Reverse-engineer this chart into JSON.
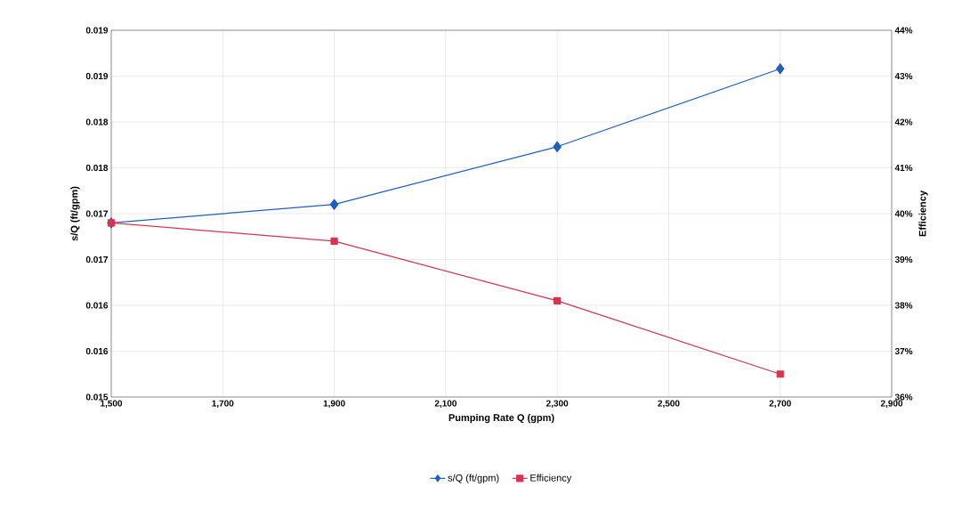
{
  "chart_data": {
    "type": "line",
    "xlabel": "Pumping Rate Q (gpm)",
    "ylabel": "s/Q (ft/gpm)",
    "y2label": "Efficiency",
    "x": [
      1500,
      1900,
      2300,
      2700
    ],
    "series": [
      {
        "name": "s/Q (ft/gpm)",
        "color": "#1f5fbf",
        "marker": "diamond",
        "values": [
          0.0169,
          0.0171,
          0.01773,
          0.01858
        ]
      },
      {
        "name": "Efficiency",
        "color": "#d9334f",
        "marker": "square",
        "axis": "y2",
        "values": [
          39.8,
          39.4,
          38.1,
          36.5
        ]
      }
    ],
    "xlim": [
      1500,
      2900
    ],
    "xticks": [
      {
        "value": 1500,
        "label": "1,500"
      },
      {
        "value": 1700,
        "label": "1,700"
      },
      {
        "value": 1900,
        "label": "1,900"
      },
      {
        "value": 2100,
        "label": "2,100"
      },
      {
        "value": 2300,
        "label": "2,300"
      },
      {
        "value": 2500,
        "label": "2,500"
      },
      {
        "value": 2700,
        "label": "2,700"
      },
      {
        "value": 2900,
        "label": "2,900"
      }
    ],
    "ylim": [
      0.015,
      0.019
    ],
    "yticks": [
      0.015,
      {
        "value": 0.0155,
        "label": "0.016"
      },
      0.016,
      {
        "value": 0.0165,
        "label": "0.017"
      },
      0.017,
      {
        "value": 0.0175,
        "label": "0.018"
      },
      0.018,
      {
        "value": 0.0185,
        "label": "0.019"
      },
      0.019
    ],
    "y2lim": [
      36,
      44
    ],
    "y2ticks": [
      {
        "value": 36,
        "label": "36%"
      },
      {
        "value": 37,
        "label": "37%"
      },
      {
        "value": 38,
        "label": "38%"
      },
      {
        "value": 39,
        "label": "39%"
      },
      {
        "value": 40,
        "label": "40%"
      },
      {
        "value": 41,
        "label": "41%"
      },
      {
        "value": 42,
        "label": "42%"
      },
      {
        "value": 43,
        "label": "43%"
      },
      {
        "value": 44,
        "label": "44%"
      }
    ],
    "grid": true,
    "legend": "bottom"
  }
}
